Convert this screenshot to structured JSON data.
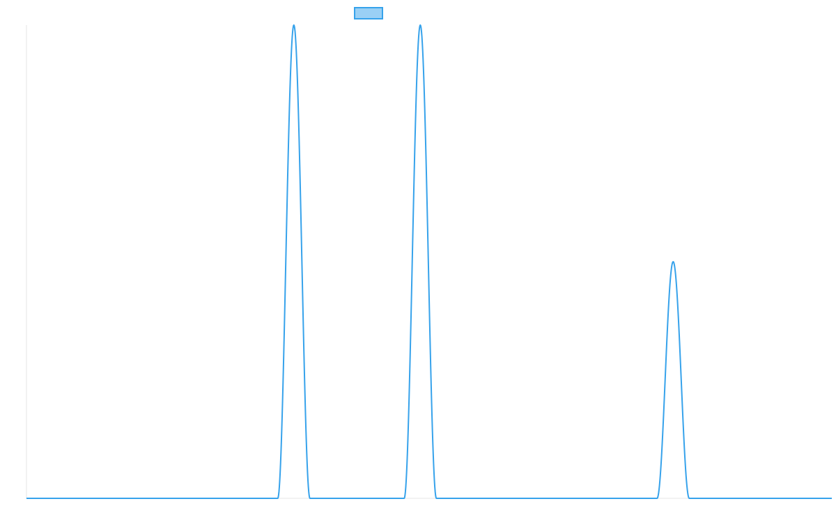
{
  "chart_data": {
    "type": "line",
    "title": "",
    "xlabel": "",
    "ylabel": "",
    "legend": {
      "position": "top",
      "entries": [
        {
          "label": "",
          "color": "#36a2eb",
          "fill": "#9ad0f5"
        }
      ]
    },
    "grid": false,
    "xlim": [
      0,
      1000
    ],
    "ylim": [
      0,
      1
    ],
    "colors": {
      "series": "#36a2eb",
      "axis": "#e6e6e6"
    },
    "series": [
      {
        "name": "",
        "peaks": [
          {
            "center": 332,
            "half_width": 20,
            "height": 1.0
          },
          {
            "center": 489,
            "half_width": 20,
            "height": 1.0
          },
          {
            "center": 803,
            "half_width": 20,
            "height": 0.5
          }
        ]
      }
    ]
  }
}
